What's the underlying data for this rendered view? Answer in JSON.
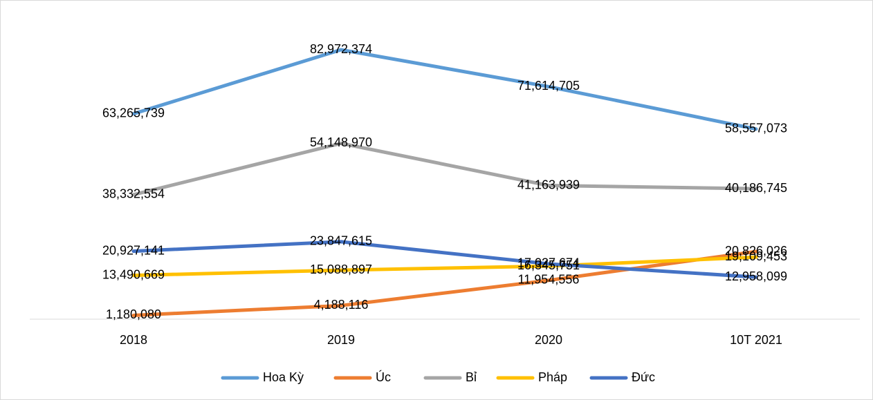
{
  "chart_data": {
    "type": "line",
    "categories": [
      "2018",
      "2019",
      "2020",
      "10T 2021"
    ],
    "series": [
      {
        "name": "Hoa Kỳ",
        "color": "#5B9BD5",
        "values": [
          63265739,
          82972374,
          71614705,
          58557073
        ],
        "value_labels": [
          "63,265,739",
          "82,972,374",
          "71,614,705",
          "58,557,073"
        ]
      },
      {
        "name": "Úc",
        "color": "#ED7D31",
        "values": [
          1180080,
          4188116,
          11954556,
          20826026
        ],
        "value_labels": [
          "1,180,080",
          "4,188,116",
          "11,954,556",
          "20,826,026"
        ]
      },
      {
        "name": "Bỉ",
        "color": "#A5A5A5",
        "values": [
          38332554,
          54148970,
          41163939,
          40186745
        ],
        "value_labels": [
          "38,332,554",
          "54,148,970",
          "41,163,939",
          "40,186,745"
        ]
      },
      {
        "name": "Pháp",
        "color": "#FFC000",
        "values": [
          13490669,
          15088897,
          16345751,
          19109453
        ],
        "value_labels": [
          "13,490,669",
          "15,088,897",
          "16,345,751",
          "19,109,453"
        ]
      },
      {
        "name": "Đức",
        "color": "#4472C4",
        "values": [
          20927141,
          23847615,
          17027674,
          12958099
        ],
        "value_labels": [
          "20,927,141",
          "23,847,615",
          "17,027,674",
          "12,958,099"
        ]
      }
    ],
    "ylim": [
      0,
      90000000
    ],
    "legend": "bottom"
  }
}
